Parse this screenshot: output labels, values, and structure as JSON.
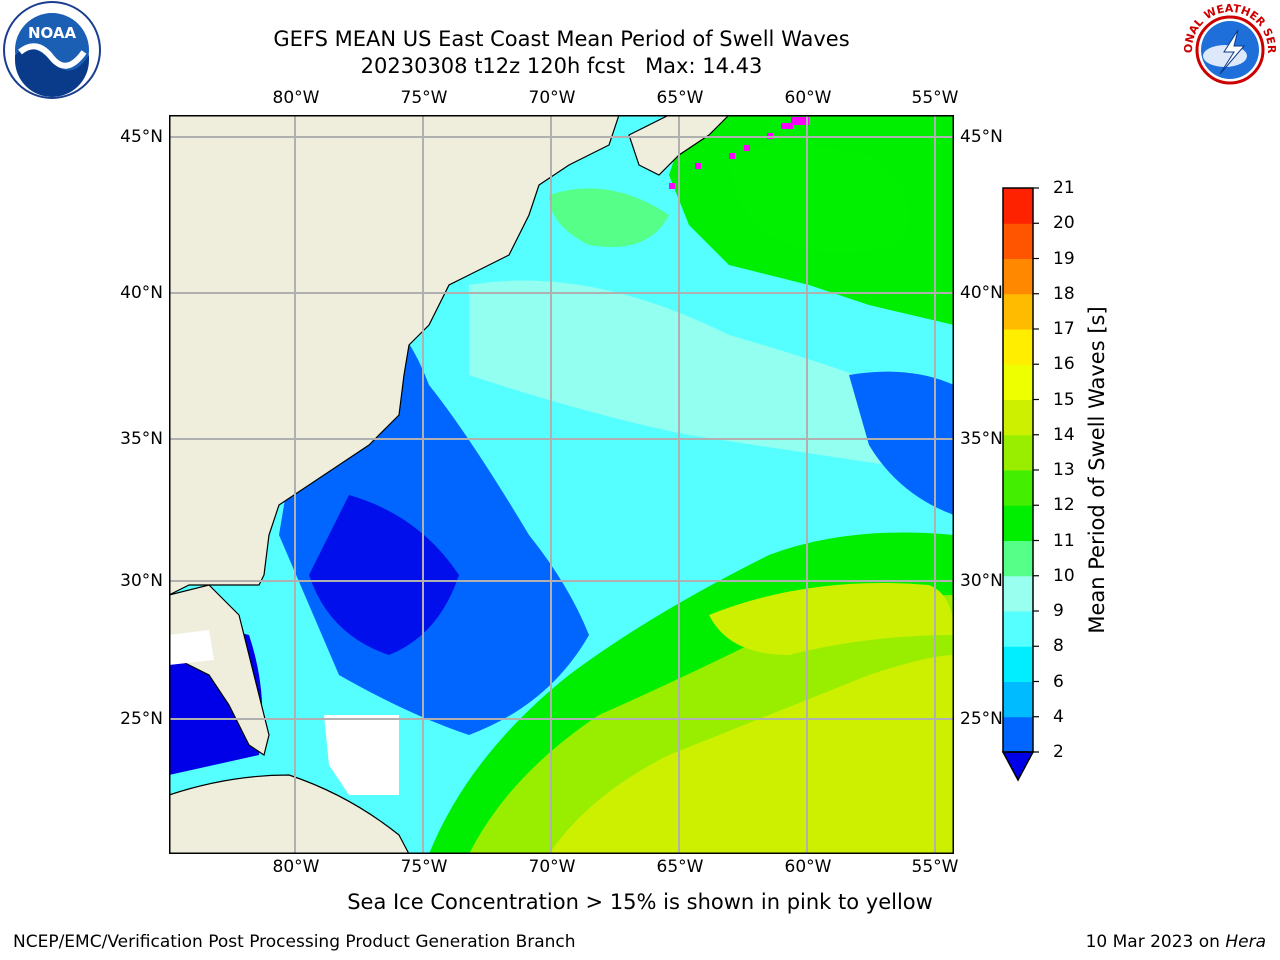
{
  "header": {
    "title_line1": "GEFS MEAN US East Coast Mean Period of Swell Waves",
    "title_line2": "20230308 t12z 120h fcst   Max: 14.43"
  },
  "map": {
    "lon_ticks": [
      "80°W",
      "75°W",
      "70°W",
      "65°W",
      "60°W",
      "55°W"
    ],
    "lat_ticks": [
      "45°N",
      "40°N",
      "35°N",
      "30°N",
      "25°N"
    ],
    "colors": {
      "land": "#efeedc",
      "coast": "#000000",
      "grid": "#b0b0b0",
      "sea_ice": "#ff00ff",
      "no_data": "#ffffff"
    }
  },
  "colorbar": {
    "label": "Mean Period of Swell Waves [s]",
    "ticks": [
      "21",
      "20",
      "19",
      "18",
      "17",
      "16",
      "15",
      "14",
      "13",
      "12",
      "11",
      "10",
      "9",
      "8",
      "6",
      "4",
      "2"
    ],
    "colors": [
      "#0000e8",
      "#0066ff",
      "#00bbff",
      "#00eeff",
      "#55ffff",
      "#99ffee",
      "#55ff88",
      "#00ee00",
      "#44ee00",
      "#99ee00",
      "#ccf000",
      "#eeff00",
      "#ffee00",
      "#ffbb00",
      "#ff8800",
      "#ff5500",
      "#ff2200",
      "#ff0000"
    ]
  },
  "footer": {
    "note": "Sea Ice Concentration > 15% is shown in pink to yellow",
    "left": "NCEP/EMC/Verification Post Processing Product Generation Branch",
    "right_date": "10 Mar 2023 on ",
    "right_host": "Hera"
  },
  "logos": {
    "noaa_text": "NOAA",
    "nws_text": "NATIONAL WEATHER SERVICE"
  }
}
